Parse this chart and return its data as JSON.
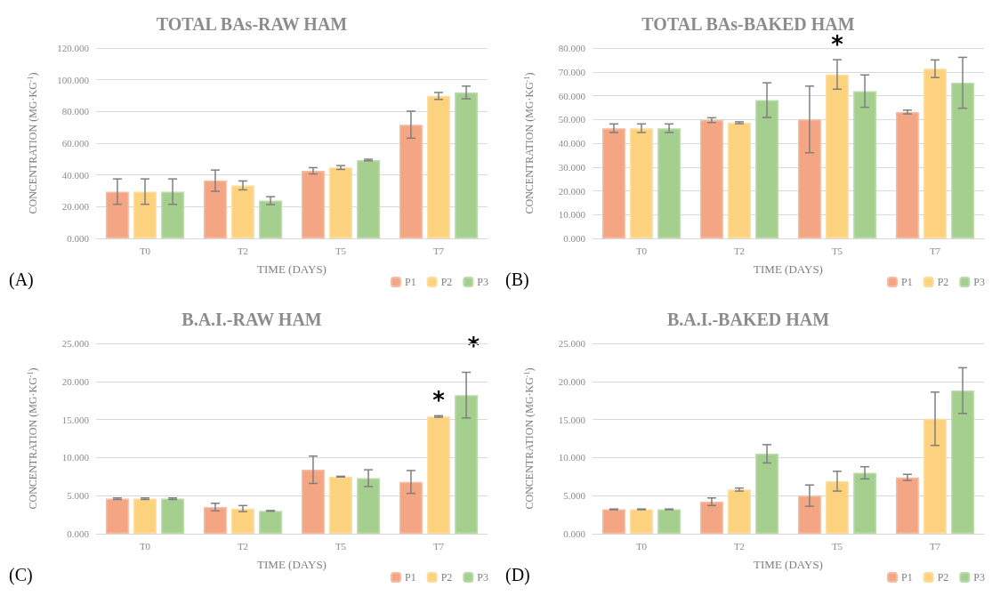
{
  "chart_data": [
    {
      "type": "bar",
      "title": "TOTAL BAs-RAW HAM",
      "xlabel": "TIME (DAYS)",
      "ylabel": "CONCENTRATION (MG·KG$^{-1}$)",
      "categories": [
        "T0",
        "T2",
        "T5",
        "T7"
      ],
      "series": [
        {
          "name": "P1",
          "color": "#f4a583",
          "values": [
            29.5,
            36.4,
            42.6,
            71.7
          ],
          "errors": [
            8,
            6.7,
            2,
            8.5
          ]
        },
        {
          "name": "P2",
          "color": "#fdd27e",
          "values": [
            29.5,
            33.4,
            44.7,
            89.8
          ],
          "errors": [
            8,
            2.8,
            1.2,
            2.2
          ]
        },
        {
          "name": "P3",
          "color": "#a5cf8e",
          "values": [
            29.5,
            23.8,
            49.4,
            92
          ],
          "errors": [
            8,
            2.5,
            0.5,
            4
          ]
        }
      ],
      "ylim": [
        0,
        120
      ],
      "yticks": [
        {
          "value": 0,
          "label": "0.000"
        },
        {
          "value": 20,
          "label": "20.000"
        },
        {
          "value": 40,
          "label": "40.000"
        },
        {
          "value": 60,
          "label": "60.000"
        },
        {
          "value": 80,
          "label": "80.000"
        },
        {
          "value": 100,
          "label": "100.000"
        },
        {
          "value": 120,
          "label": "120.000"
        }
      ],
      "grid": "y",
      "legend": "bottom right",
      "annotations": [
        "(A)"
      ]
    },
    {
      "type": "bar",
      "title": "TOTAL BAs-BAKED HAM",
      "xlabel": "TIME (DAYS)",
      "ylabel": "CONCENTRATION (MG·KG$^{-1}$)",
      "categories": [
        "T0",
        "T2",
        "T5",
        "T7"
      ],
      "series": [
        {
          "name": "P1",
          "color": "#f4a583",
          "values": [
            46.3,
            49.7,
            50,
            53.1
          ],
          "errors": [
            1.8,
            1,
            14,
            0.8
          ]
        },
        {
          "name": "P2",
          "color": "#fdd27e",
          "values": [
            46.3,
            48.6,
            68.9,
            71.3
          ],
          "errors": [
            1.8,
            0.4,
            6.2,
            3.7
          ]
        },
        {
          "name": "P3",
          "color": "#a5cf8e",
          "values": [
            46.3,
            58.1,
            61.9,
            65.4
          ],
          "errors": [
            1.8,
            7.3,
            6.8,
            10.7
          ]
        }
      ],
      "ylim": [
        0,
        80
      ],
      "yticks": [
        {
          "value": 0,
          "label": "0.000"
        },
        {
          "value": 10,
          "label": "10.000"
        },
        {
          "value": 20,
          "label": "20.000"
        },
        {
          "value": 30,
          "label": "30.000"
        },
        {
          "value": 40,
          "label": "40.000"
        },
        {
          "value": 50,
          "label": "50.000"
        },
        {
          "value": 60,
          "label": "60.000"
        },
        {
          "value": 70,
          "label": "70.000"
        },
        {
          "value": 80,
          "label": "80.000"
        }
      ],
      "grid": "y",
      "legend": "bottom right",
      "annotations": [
        "(B)",
        {
          "text": "*",
          "x": "T5",
          "y": 68.9
        }
      ]
    },
    {
      "type": "bar",
      "title": "B.A.I.-RAW HAM",
      "xlabel": "TIME (DAYS)",
      "ylabel": "CONCENTRATION (MG·KG$^{-1}$)",
      "categories": [
        "T0",
        "T2",
        "T5",
        "T7"
      ],
      "series": [
        {
          "name": "P1",
          "color": "#f4a583",
          "values": [
            4.6,
            3.5,
            8.4,
            6.8
          ],
          "errors": [
            0.1,
            0.5,
            1.8,
            1.5
          ]
        },
        {
          "name": "P2",
          "color": "#fdd27e",
          "values": [
            4.6,
            3.3,
            7.5,
            15.4
          ],
          "errors": [
            0.1,
            0.4,
            0.05,
            0.1
          ]
        },
        {
          "name": "P3",
          "color": "#a5cf8e",
          "values": [
            4.6,
            3,
            7.3,
            18.2
          ],
          "errors": [
            0.1,
            0.05,
            1.1,
            3
          ]
        }
      ],
      "ylim": [
        0,
        25
      ],
      "yticks": [
        {
          "value": 0,
          "label": "0.000"
        },
        {
          "value": 5,
          "label": "5.000"
        },
        {
          "value": 10,
          "label": "10.000"
        },
        {
          "value": 15,
          "label": "15.000"
        },
        {
          "value": 20,
          "label": "20.000"
        },
        {
          "value": 25,
          "label": "25.000"
        }
      ],
      "grid": "y",
      "legend": "bottom right",
      "annotations": [
        "(C)",
        {
          "text": "*",
          "x": "T7",
          "y": 15.4
        },
        "*"
      ]
    },
    {
      "type": "bar",
      "title": "B.A.I.-BAKED HAM",
      "xlabel": "TIME (DAYS)",
      "ylabel": "CONCENTRATION (MG·KG$^{-1}$)",
      "categories": [
        "T0",
        "T2",
        "T5",
        "T7"
      ],
      "series": [
        {
          "name": "P1",
          "color": "#f4a583",
          "values": [
            3.2,
            4.2,
            5,
            7.4
          ],
          "errors": [
            0.05,
            0.5,
            1.4,
            0.4
          ]
        },
        {
          "name": "P2",
          "color": "#fdd27e",
          "values": [
            3.2,
            5.8,
            6.9,
            15.1
          ],
          "errors": [
            0.05,
            0.2,
            1.3,
            3.5
          ]
        },
        {
          "name": "P3",
          "color": "#a5cf8e",
          "values": [
            3.2,
            10.5,
            8,
            18.8
          ],
          "errors": [
            0.05,
            1.2,
            0.8,
            3
          ]
        }
      ],
      "ylim": [
        0,
        25
      ],
      "yticks": [
        {
          "value": 0,
          "label": "0.000"
        },
        {
          "value": 5,
          "label": "5.000"
        },
        {
          "value": 10,
          "label": "10.000"
        },
        {
          "value": 15,
          "label": "15.000"
        },
        {
          "value": 20,
          "label": "20.000"
        },
        {
          "value": 25,
          "label": "25.000"
        }
      ],
      "grid": "y",
      "legend": "bottom right",
      "annotations": [
        "(D)"
      ]
    }
  ]
}
